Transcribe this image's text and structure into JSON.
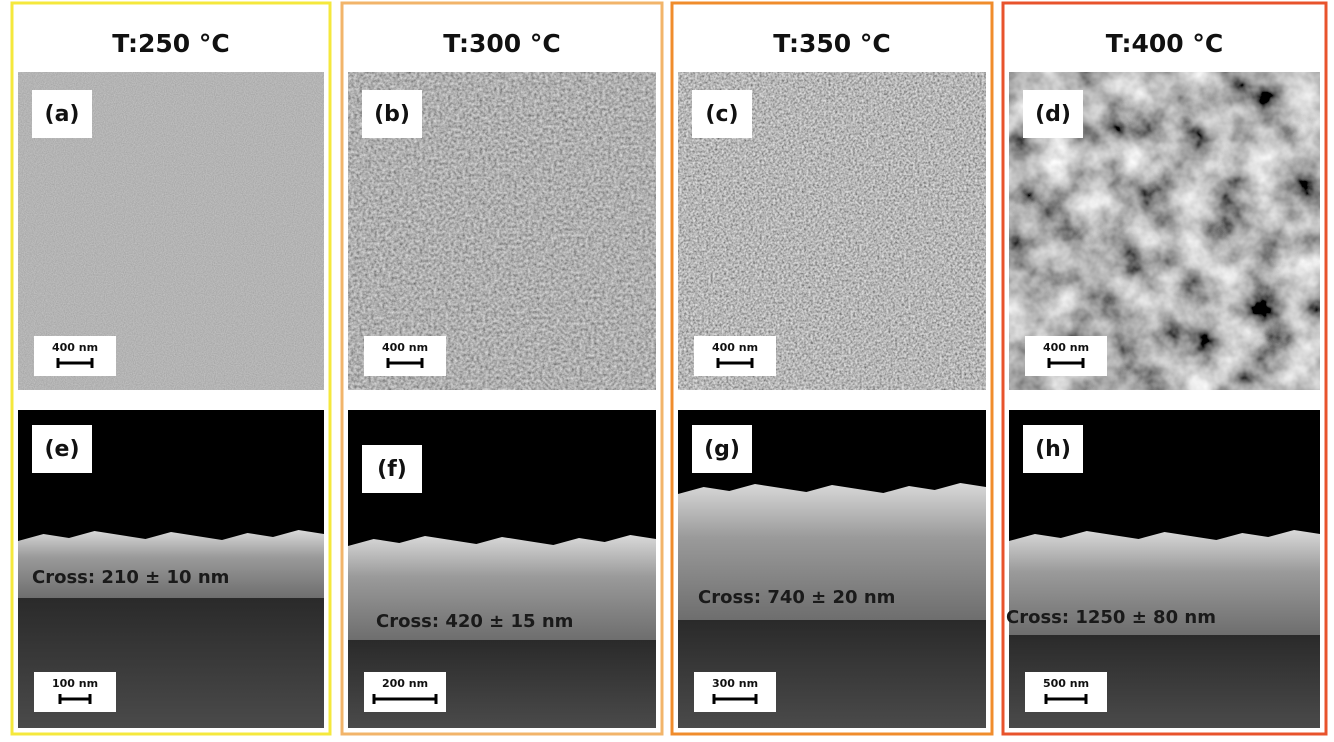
{
  "columns": [
    {
      "title": "T:250 °C",
      "top": {
        "label": "(a)",
        "scale": "400 nm"
      },
      "bottom": {
        "label": "(e)",
        "cross": "Cross: 210 ± 10 nm",
        "scale": "100 nm"
      }
    },
    {
      "title": "T:300 °C",
      "top": {
        "label": "(b)",
        "scale": "400 nm"
      },
      "bottom": {
        "label": "(f)",
        "cross": "Cross: 420 ± 15 nm",
        "scale": "200 nm"
      }
    },
    {
      "title": "T:350 °C",
      "top": {
        "label": "(c)",
        "scale": "400 nm"
      },
      "bottom": {
        "label": "(g)",
        "cross": "Cross: 740 ± 20 nm",
        "scale": "300 nm"
      }
    },
    {
      "title": "T:400 °C",
      "top": {
        "label": "(d)",
        "scale": "400 nm"
      },
      "bottom": {
        "label": "(h)",
        "cross": "Cross: 1250 ± 80 nm",
        "scale": "500 nm"
      }
    }
  ]
}
